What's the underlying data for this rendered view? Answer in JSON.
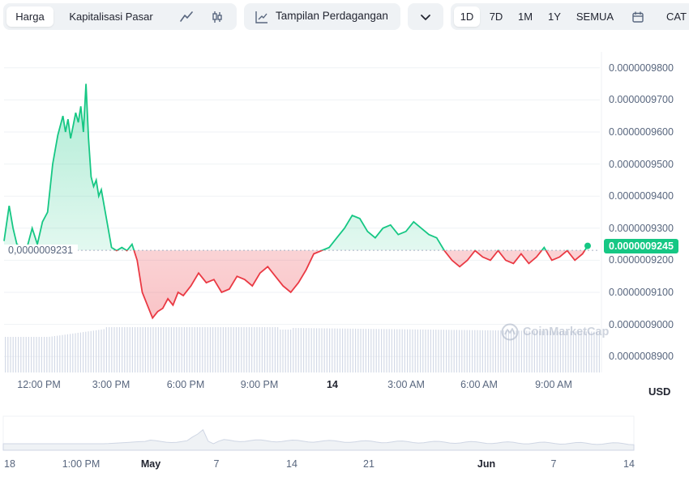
{
  "toolbar": {
    "price_tab": "Harga",
    "marketcap_tab": "Kapitalisasi Pasar",
    "line_icon": "line-chart-icon",
    "candle_icon": "candlestick-icon",
    "trading_view_label": "Tampilan Perdagangan",
    "trading_view_icon": "trend-line-icon",
    "dropdown_icon": "chevron-down-icon",
    "ranges": [
      "1D",
      "7D",
      "1M",
      "1Y",
      "SEMUA"
    ],
    "active_range": "1D",
    "calendar_icon": "calendar-icon",
    "chart_partial_label": "CAT"
  },
  "watermark": "CoinMarketCap",
  "currency": "USD",
  "colors": {
    "up": "#16c784",
    "down": "#ea3943",
    "volume": "#cfd6e4",
    "reference": "#a6b0c3"
  },
  "chart_data": {
    "type": "line",
    "title": "",
    "ylabel": "",
    "xlabel": "",
    "ylim": [
      8.85e-07,
      9.85e-07
    ],
    "y_ticks": [
      "0.0000009800",
      "0.0000009700",
      "0.0000009600",
      "0.0000009500",
      "0.0000009400",
      "0.0000009300",
      "0.0000009200",
      "0.0000009100",
      "0.0000009000",
      "0.0000008900"
    ],
    "x_ticks": [
      "12:00 PM",
      "3:00 PM",
      "6:00 PM",
      "9:00 PM",
      "14",
      "3:00 AM",
      "6:00 AM",
      "9:00 AM"
    ],
    "reference_price": 9.231e-07,
    "reference_label": "0,0000009231",
    "current_price": 9.245e-07,
    "current_label": "0.0000009245",
    "grid": true,
    "baseline_split": "green above reference, red below",
    "series": [
      {
        "x": [
          0.0,
          0.2,
          0.35,
          0.5,
          0.7,
          0.9,
          1.1,
          1.3,
          1.5,
          1.7,
          1.9,
          2.1,
          2.3,
          2.4,
          2.5,
          2.6,
          2.7,
          2.8,
          2.9,
          3.0,
          3.1,
          3.2,
          3.3,
          3.4,
          3.5,
          3.6,
          3.7,
          3.8,
          4.0,
          4.2,
          4.4,
          4.6,
          4.8,
          5.0,
          5.2,
          5.4,
          5.6,
          5.8,
          6.0,
          6.2,
          6.4,
          6.6,
          6.8,
          7.0,
          7.3,
          7.6,
          7.9,
          8.2,
          8.5,
          8.8,
          9.1,
          9.4,
          9.7,
          10.0,
          10.3,
          10.6,
          10.9,
          11.2,
          11.5,
          11.8,
          12.1,
          12.4,
          12.7,
          13.0,
          13.3,
          13.6,
          13.9,
          14.2,
          14.5,
          14.8,
          15.1,
          15.4,
          15.7,
          16.0,
          16.3,
          16.6,
          16.9,
          17.2,
          17.5,
          17.8,
          18.1,
          18.4,
          18.7,
          19.0,
          19.3,
          19.6,
          19.9,
          20.2,
          20.5,
          20.8,
          21.1,
          21.4,
          21.7,
          22.0,
          22.3,
          22.6,
          22.8
        ],
        "values": [
          9.26e-07,
          9.37e-07,
          9.3e-07,
          9.25e-07,
          9.24e-07,
          9.24e-07,
          9.3e-07,
          9.25e-07,
          9.32e-07,
          9.35e-07,
          9.5e-07,
          9.59e-07,
          9.65e-07,
          9.6e-07,
          9.64e-07,
          9.58e-07,
          9.62e-07,
          9.66e-07,
          9.63e-07,
          9.68e-07,
          9.6e-07,
          9.75e-07,
          9.58e-07,
          9.46e-07,
          9.43e-07,
          9.45e-07,
          9.4e-07,
          9.42e-07,
          9.33e-07,
          9.24e-07,
          9.23e-07,
          9.24e-07,
          9.23e-07,
          9.25e-07,
          9.2e-07,
          9.1e-07,
          9.06e-07,
          9.02e-07,
          9.04e-07,
          9.05e-07,
          9.08e-07,
          9.06e-07,
          9.1e-07,
          9.09e-07,
          9.12e-07,
          9.16e-07,
          9.13e-07,
          9.14e-07,
          9.1e-07,
          9.11e-07,
          9.15e-07,
          9.14e-07,
          9.12e-07,
          9.16e-07,
          9.18e-07,
          9.15e-07,
          9.12e-07,
          9.1e-07,
          9.13e-07,
          9.17e-07,
          9.22e-07,
          9.23e-07,
          9.24e-07,
          9.27e-07,
          9.3e-07,
          9.34e-07,
          9.33e-07,
          9.29e-07,
          9.27e-07,
          9.3e-07,
          9.31e-07,
          9.28e-07,
          9.29e-07,
          9.32e-07,
          9.3e-07,
          9.28e-07,
          9.27e-07,
          9.23e-07,
          9.2e-07,
          9.18e-07,
          9.2e-07,
          9.23e-07,
          9.21e-07,
          9.2e-07,
          9.23e-07,
          9.2e-07,
          9.19e-07,
          9.22e-07,
          9.19e-07,
          9.21e-07,
          9.24e-07,
          9.2e-07,
          9.21e-07,
          9.23e-07,
          9.2e-07,
          9.22e-07,
          9.245e-07
        ]
      }
    ]
  },
  "navigator": {
    "labels": [
      "18",
      "1:00 PM",
      "May",
      "7",
      "14",
      "21",
      "Jun",
      "7",
      "14"
    ],
    "bold_labels": [
      "May",
      "Jun"
    ]
  }
}
